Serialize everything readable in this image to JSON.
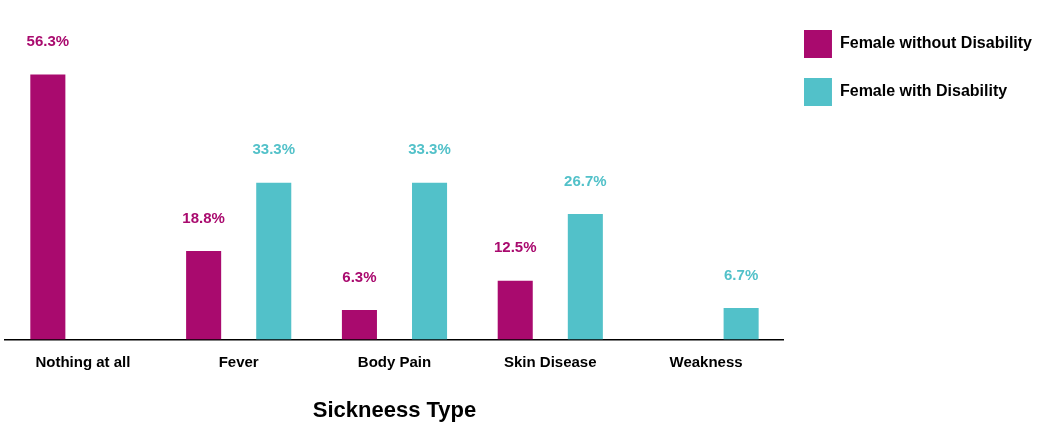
{
  "chart_data": {
    "type": "bar",
    "xlabel": "Sickneess Type",
    "categories": [
      "Nothing at all",
      "Fever",
      "Body Pain",
      "Skin Disease",
      "Weakness"
    ],
    "series": [
      {
        "name": "Female without Disability",
        "color": "#a90a6e",
        "values": [
          56.3,
          18.8,
          6.3,
          12.5,
          null
        ],
        "value_labels": [
          "56.3%",
          "18.8%",
          "6.3%",
          "12.5%",
          null
        ]
      },
      {
        "name": "Female with Disability",
        "color": "#52c1c9",
        "values": [
          null,
          33.3,
          33.3,
          26.7,
          6.7
        ],
        "value_labels": [
          null,
          "33.3%",
          "33.3%",
          "26.7%",
          "6.7%"
        ]
      }
    ],
    "grid": false,
    "legend": "top right"
  }
}
